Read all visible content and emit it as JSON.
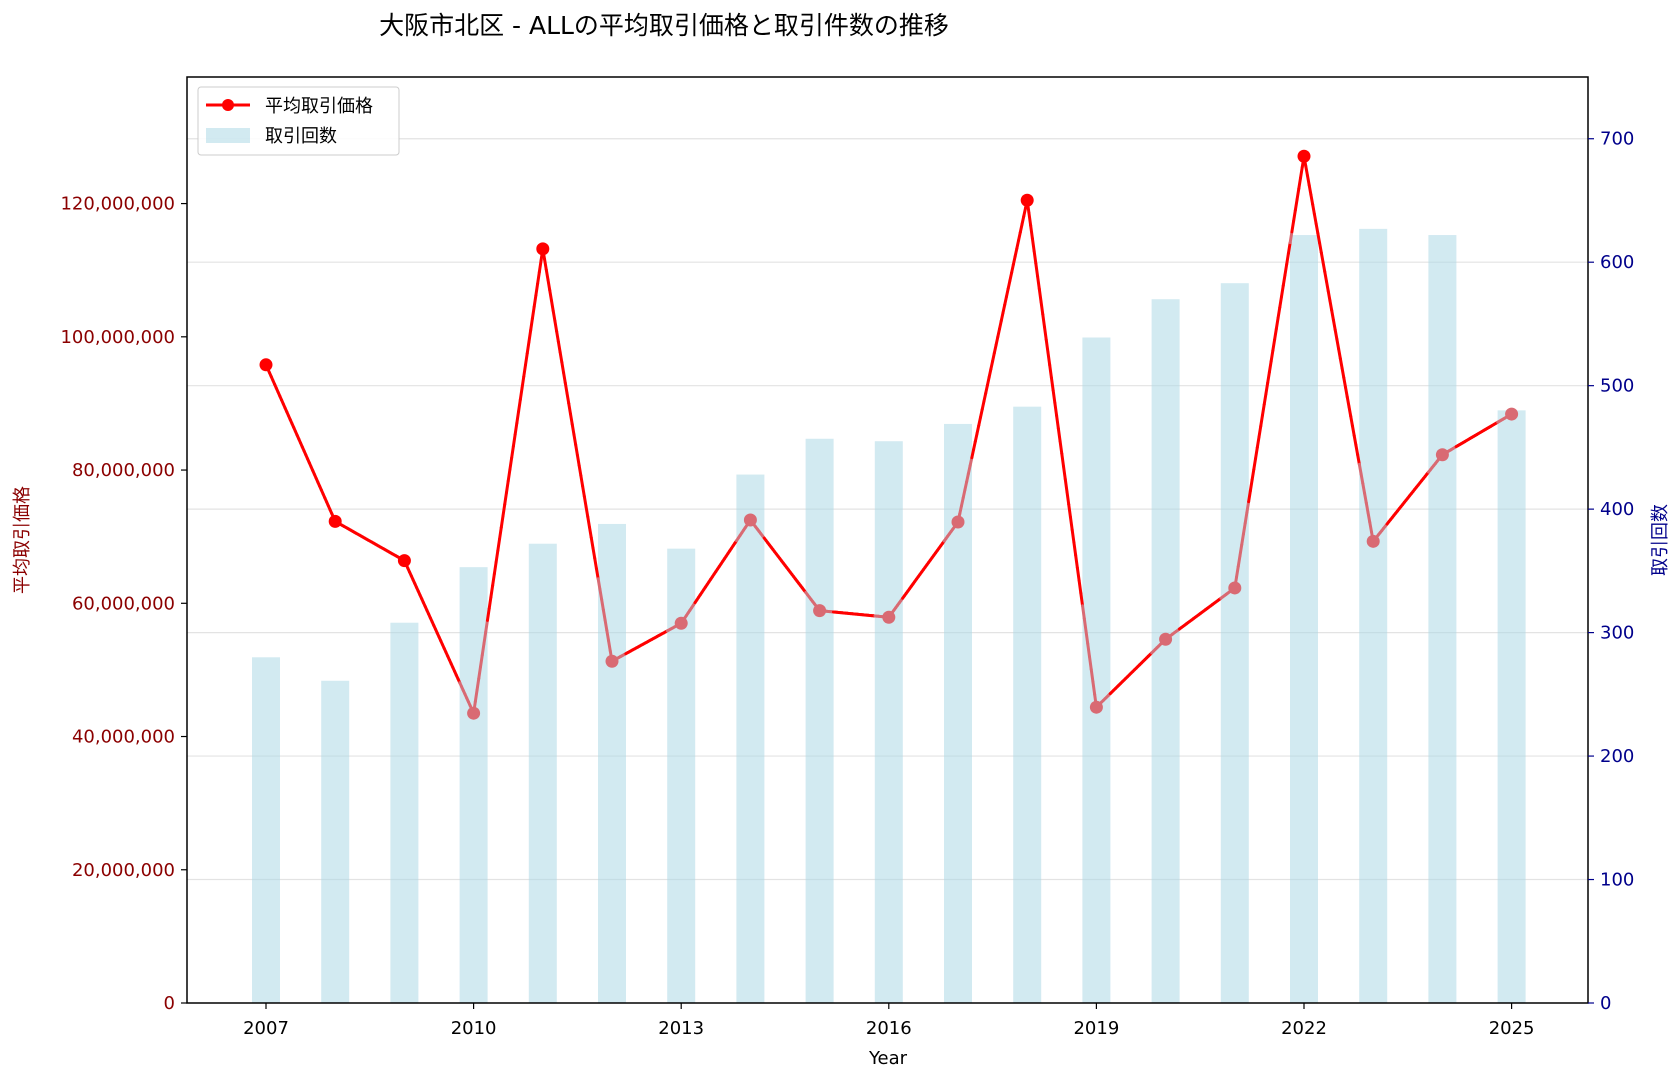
{
  "chart_data": {
    "type": "bar+line",
    "title": "大阪市北区 - ALLの平均取引価格と取引件数の推移",
    "xlabel": "Year",
    "ylabel_left": "平均取引価格",
    "ylabel_right": "取引回数",
    "years": [
      2007,
      2008,
      2009,
      2010,
      2011,
      2012,
      2013,
      2014,
      2015,
      2016,
      2017,
      2018,
      2019,
      2020,
      2021,
      2022,
      2023,
      2024,
      2025
    ],
    "x_ticks": [
      "2007",
      "2010",
      "2013",
      "2016",
      "2019",
      "2022",
      "2025"
    ],
    "series": [
      {
        "name": "平均取引価格",
        "kind": "line",
        "axis": "left",
        "color": "#ff0000",
        "values": [
          95800000,
          72300000,
          66400000,
          43500000,
          113200000,
          51300000,
          57000000,
          72500000,
          58900000,
          57900000,
          72200000,
          120500000,
          44400000,
          54600000,
          62300000,
          127100000,
          69300000,
          82300000,
          88400000
        ]
      },
      {
        "name": "取引回数",
        "kind": "bar",
        "axis": "right",
        "color": "#add8e6",
        "values": [
          280,
          261,
          308,
          353,
          372,
          388,
          368,
          428,
          457,
          455,
          469,
          483,
          539,
          570,
          583,
          622,
          627,
          622,
          480
        ]
      }
    ],
    "y_left_ticks": [
      "0",
      "20,000,000",
      "40,000,000",
      "60,000,000",
      "80,000,000",
      "100,000,000",
      "120,000,000"
    ],
    "y_left_range": [
      0,
      139000000
    ],
    "y_right_ticks": [
      "0",
      "100",
      "200",
      "300",
      "400",
      "500",
      "600",
      "700"
    ],
    "y_right_range": [
      0,
      750
    ],
    "legend_position": "top-left",
    "grid": "horizontal",
    "colors": {
      "left_axis": "#8b0000",
      "right_axis": "#00008b"
    }
  }
}
